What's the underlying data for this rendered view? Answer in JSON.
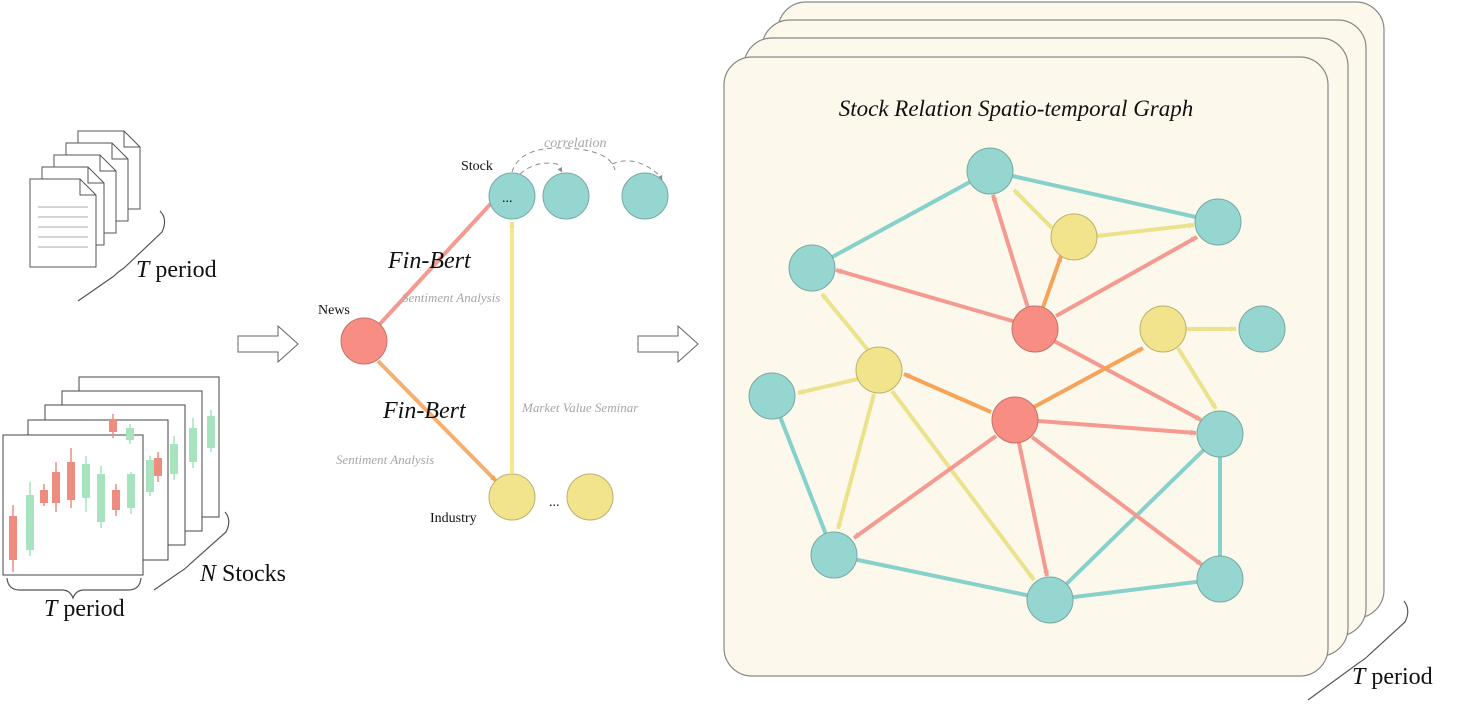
{
  "left_panel": {
    "docs_T": "T",
    "docs_period": " period",
    "charts_T": "T",
    "charts_period": " period",
    "stocks_N": "N",
    "stocks_label": " Stocks"
  },
  "middle_panel": {
    "stock_label": "Stock",
    "stock_ellipsis": "...",
    "correlation_label": "correlation",
    "news_label": "News",
    "finbert_top": "Fin-Bert",
    "sentiment_top": "Sentiment Analysis",
    "finbert_bottom": "Fin-Bert",
    "sentiment_bottom": "Sentiment Analysis",
    "market_value_label": "Market Value Seminar",
    "industry_label": "Industry",
    "industry_ellipsis": "..."
  },
  "right_panel": {
    "title": "Stock Relation Spatio-temporal Graph",
    "period_T": "T",
    "period_label": " period"
  },
  "colors": {
    "stock_node": "#95d6d0",
    "news_node": "#f88d83",
    "industry_node": "#f2e48c",
    "edge_teal": "#86d1ca",
    "edge_red": "#f49a90",
    "edge_orange": "#f5a45a",
    "edge_yellow": "#ece28c",
    "panel_fill": "#fdf8ec",
    "candle_up": "#a6e3be",
    "candle_down": "#ef8c80"
  }
}
